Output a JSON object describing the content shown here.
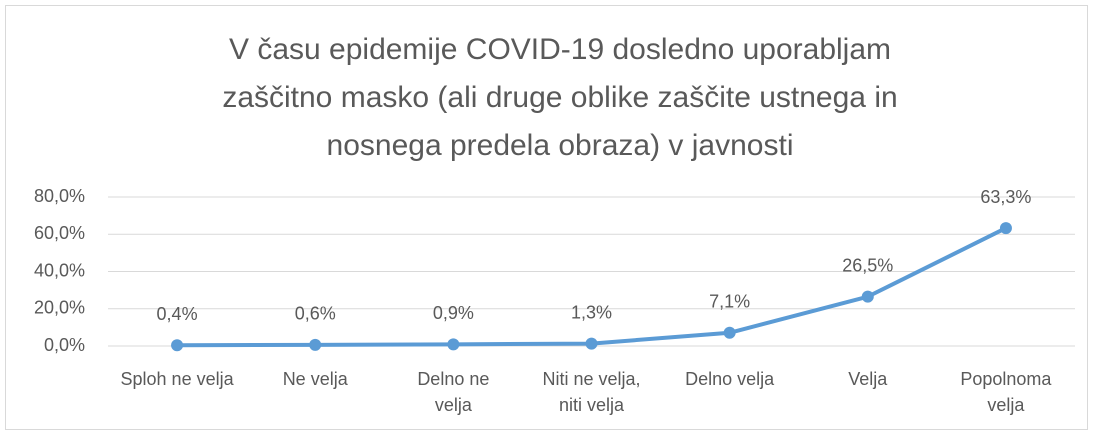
{
  "chart_data": {
    "type": "line",
    "title": "V času epidemije COVID-19 dosledno uporabljam\nzaščitno masko (ali druge oblike zaščite ustnega in\nnosnega predela obraza) v javnosti",
    "categories": [
      "Sploh ne velja",
      "Ne velja",
      "Delno ne\nvelja",
      "Niti ne velja,\nniti velja",
      "Delno velja",
      "Velja",
      "Popolnoma\nvelja"
    ],
    "series": [
      {
        "name": "V času epidemije COVID-19 dosledno uporabljam zaščitno masko",
        "color": "#5b9bd5",
        "values": [
          0.4,
          0.6,
          0.9,
          1.3,
          7.1,
          26.5,
          63.3
        ],
        "value_labels": [
          "0,4%",
          "0,6%",
          "0,9%",
          "1,3%",
          "7,1%",
          "26,5%",
          "63,3%"
        ]
      }
    ],
    "ylim": [
      0,
      80
    ],
    "yticks": [
      {
        "value": 0,
        "label": "0,0%"
      },
      {
        "value": 20,
        "label": "20,0%"
      },
      {
        "value": 40,
        "label": "40,0%"
      },
      {
        "value": 60,
        "label": "60,0%"
      },
      {
        "value": 80,
        "label": "80,0%"
      }
    ],
    "grid": true
  }
}
